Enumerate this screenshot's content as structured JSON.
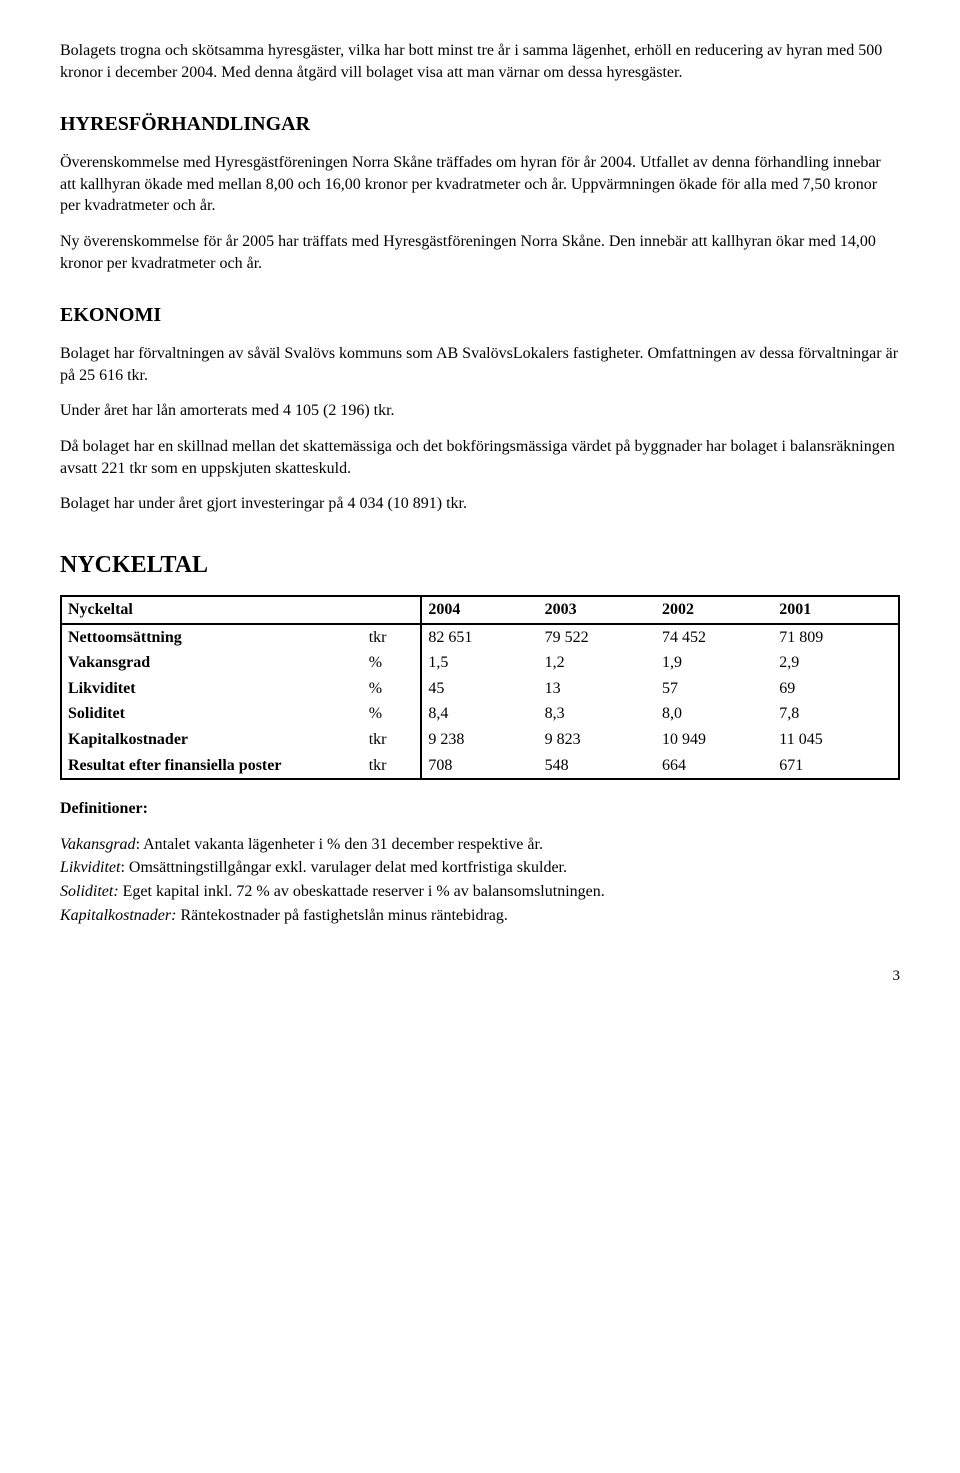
{
  "para1": "Bolagets trogna och skötsamma hyresgäster, vilka har bott minst tre år i samma lägenhet, erhöll en reducering av hyran med 500 kronor i december 2004. Med denna åtgärd vill bolaget visa att man värnar om dessa hyresgäster.",
  "h_hyres": "HYRESFÖRHANDLINGAR",
  "para2": "Överenskommelse med Hyresgästföreningen Norra Skåne träffades om hyran för år 2004. Utfallet av denna förhandling innebar att kallhyran ökade med mellan 8,00 och 16,00 kronor per kvadratmeter och år. Uppvärmningen ökade för alla med 7,50 kronor per kvadratmeter och år.",
  "para3": "Ny överenskommelse för år 2005 har träffats med Hyresgästföreningen Norra Skåne. Den innebär att kallhyran ökar med 14,00 kronor per kvadratmeter och år.",
  "h_ekonomi": "EKONOMI",
  "para4": "Bolaget har förvaltningen av såväl Svalövs kommuns som AB SvalövsLokalers fastigheter. Omfattningen av dessa förvaltningar är på 25 616 tkr.",
  "para5": "Under året har lån amorterats med 4 105 (2 196) tkr.",
  "para6": "Då bolaget har en skillnad mellan det skattemässiga och det bokföringsmässiga värdet på byggnader har bolaget i balansräkningen avsatt 221 tkr som en uppskjuten skatteskuld.",
  "para7": "Bolaget har under året gjort investeringar på 4 034 (10 891) tkr.",
  "h_nyckeltal": "NYCKELTAL",
  "table": {
    "header": [
      "Nyckeltal",
      "",
      "2004",
      "2003",
      "2002",
      "2001"
    ],
    "rows": [
      [
        "Nettoomsättning",
        "tkr",
        "82 651",
        "79 522",
        "74 452",
        "71 809"
      ],
      [
        "Vakansgrad",
        "%",
        "1,5",
        "1,2",
        "1,9",
        "2,9"
      ],
      [
        "Likviditet",
        "%",
        "45",
        "13",
        "57",
        "69"
      ],
      [
        "Soliditet",
        "%",
        "8,4",
        "8,3",
        "8,0",
        "7,8"
      ],
      [
        "Kapitalkostnader",
        "tkr",
        "9 238",
        "9 823",
        "10 949",
        "11 045"
      ],
      [
        "Resultat efter finansiella poster",
        "tkr",
        "708",
        "548",
        "664",
        "671"
      ]
    ],
    "col_widths": [
      "36%",
      "7%",
      "14%",
      "14%",
      "14%",
      "15%"
    ]
  },
  "def_title": "Definitioner:",
  "defs": [
    {
      "term": "Vakansgrad",
      "text": ": Antalet vakanta lägenheter i % den 31 december respektive år."
    },
    {
      "term": "Likviditet",
      "text": ": Omsättningstillgångar exkl. varulager delat med kortfristiga skulder."
    },
    {
      "term": "Soliditet:",
      "text": " Eget kapital inkl. 72 % av obeskattade reserver i % av balansomslutningen."
    },
    {
      "term": "Kapitalkostnader:",
      "text": " Räntekostnader på fastighetslån minus räntebidrag."
    }
  ],
  "page_number": "3"
}
